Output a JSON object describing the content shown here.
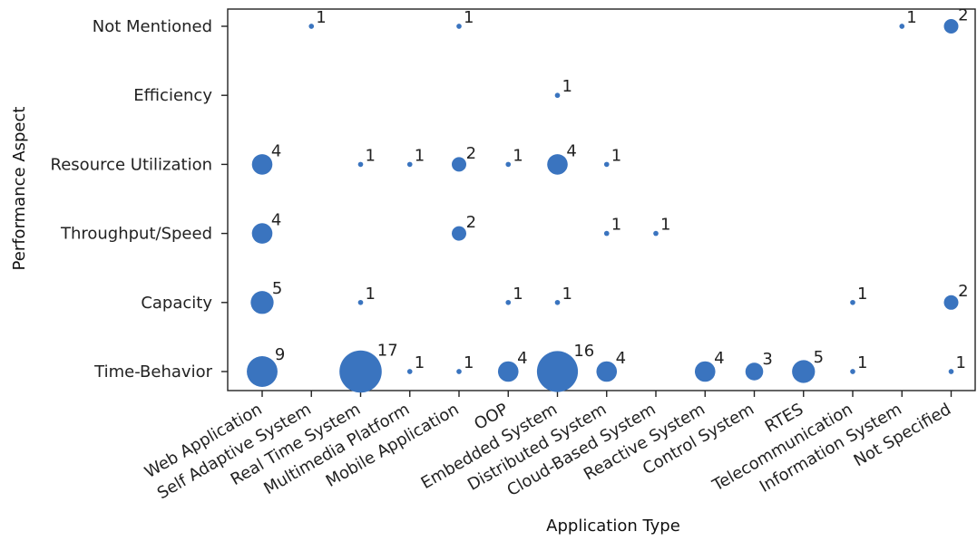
{
  "chart_data": {
    "type": "scatter",
    "title": "",
    "xlabel": "Application Type",
    "ylabel": "Performance Aspect",
    "x_categories": [
      "Web Application",
      "Self Adaptive System",
      "Real Time System",
      "Multimedia Platform",
      "Mobile Application",
      "OOP",
      "Embedded System",
      "Distributed System",
      "Cloud-Based System",
      "Reactive System",
      "Control System",
      "RTES",
      "Telecommunication",
      "Information System",
      "Not Specified"
    ],
    "y_categories": [
      "Time-Behavior",
      "Capacity",
      "Throughput/Speed",
      "Resource Utilization",
      "Efficiency",
      "Not Mentioned"
    ],
    "points": [
      {
        "x": "Self Adaptive System",
        "y": "Not Mentioned",
        "count": 1
      },
      {
        "x": "Mobile Application",
        "y": "Not Mentioned",
        "count": 1
      },
      {
        "x": "Information System",
        "y": "Not Mentioned",
        "count": 1
      },
      {
        "x": "Not Specified",
        "y": "Not Mentioned",
        "count": 2
      },
      {
        "x": "Embedded System",
        "y": "Efficiency",
        "count": 1
      },
      {
        "x": "Web Application",
        "y": "Resource Utilization",
        "count": 4
      },
      {
        "x": "Real Time System",
        "y": "Resource Utilization",
        "count": 1
      },
      {
        "x": "Multimedia Platform",
        "y": "Resource Utilization",
        "count": 1
      },
      {
        "x": "Mobile Application",
        "y": "Resource Utilization",
        "count": 2
      },
      {
        "x": "OOP",
        "y": "Resource Utilization",
        "count": 1
      },
      {
        "x": "Embedded System",
        "y": "Resource Utilization",
        "count": 4
      },
      {
        "x": "Distributed System",
        "y": "Resource Utilization",
        "count": 1
      },
      {
        "x": "Web Application",
        "y": "Throughput/Speed",
        "count": 4
      },
      {
        "x": "Mobile Application",
        "y": "Throughput/Speed",
        "count": 2
      },
      {
        "x": "Distributed System",
        "y": "Throughput/Speed",
        "count": 1
      },
      {
        "x": "Cloud-Based System",
        "y": "Throughput/Speed",
        "count": 1
      },
      {
        "x": "Web Application",
        "y": "Capacity",
        "count": 5
      },
      {
        "x": "Real Time System",
        "y": "Capacity",
        "count": 1
      },
      {
        "x": "OOP",
        "y": "Capacity",
        "count": 1
      },
      {
        "x": "Embedded System",
        "y": "Capacity",
        "count": 1
      },
      {
        "x": "Telecommunication",
        "y": "Capacity",
        "count": 1
      },
      {
        "x": "Not Specified",
        "y": "Capacity",
        "count": 2
      },
      {
        "x": "Web Application",
        "y": "Time-Behavior",
        "count": 9
      },
      {
        "x": "Real Time System",
        "y": "Time-Behavior",
        "count": 17
      },
      {
        "x": "Multimedia Platform",
        "y": "Time-Behavior",
        "count": 1
      },
      {
        "x": "Mobile Application",
        "y": "Time-Behavior",
        "count": 1
      },
      {
        "x": "OOP",
        "y": "Time-Behavior",
        "count": 4
      },
      {
        "x": "Embedded System",
        "y": "Time-Behavior",
        "count": 16
      },
      {
        "x": "Distributed System",
        "y": "Time-Behavior",
        "count": 4
      },
      {
        "x": "Reactive System",
        "y": "Time-Behavior",
        "count": 4
      },
      {
        "x": "Control System",
        "y": "Time-Behavior",
        "count": 3
      },
      {
        "x": "RTES",
        "y": "Time-Behavior",
        "count": 5
      },
      {
        "x": "Telecommunication",
        "y": "Time-Behavior",
        "count": 1
      },
      {
        "x": "Not Specified",
        "y": "Time-Behavior",
        "count": 1
      }
    ],
    "marker_color": "#3a74bf",
    "grid": false,
    "legend": "none"
  }
}
